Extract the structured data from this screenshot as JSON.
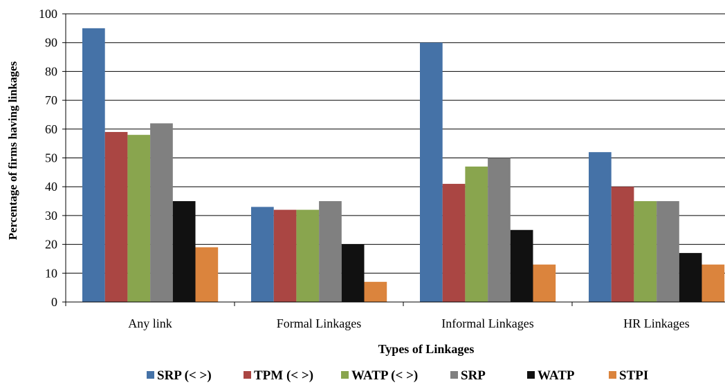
{
  "chart_data": {
    "type": "bar",
    "categories": [
      "Any link",
      "Formal Linkages",
      "Informal Linkages",
      "HR Linkages"
    ],
    "series": [
      {
        "name": "SRP (< >)",
        "color": "#4572A7",
        "values": [
          95,
          33,
          90,
          52
        ]
      },
      {
        "name": "TPM (< >)",
        "color": "#AA4643",
        "values": [
          59,
          32,
          41,
          40
        ]
      },
      {
        "name": "WATP (< >)",
        "color": "#89A54E",
        "values": [
          58,
          32,
          47,
          35
        ]
      },
      {
        "name": "SRP",
        "color": "#808080",
        "values": [
          62,
          35,
          50,
          35
        ]
      },
      {
        "name": "WATP",
        "color": "#111111",
        "values": [
          35,
          20,
          25,
          17
        ]
      },
      {
        "name": "STPI",
        "color": "#DB843D",
        "values": [
          19,
          7,
          13,
          13
        ]
      }
    ],
    "xlabel": "Types of Linkages",
    "ylabel": "Percentage of firms having linkages",
    "ylim": [
      0,
      100
    ],
    "yticks": [
      "0",
      "10",
      "20",
      "30",
      "40",
      "50",
      "60",
      "70",
      "80",
      "90",
      "100"
    ],
    "grid": true,
    "legend": "bottom"
  }
}
